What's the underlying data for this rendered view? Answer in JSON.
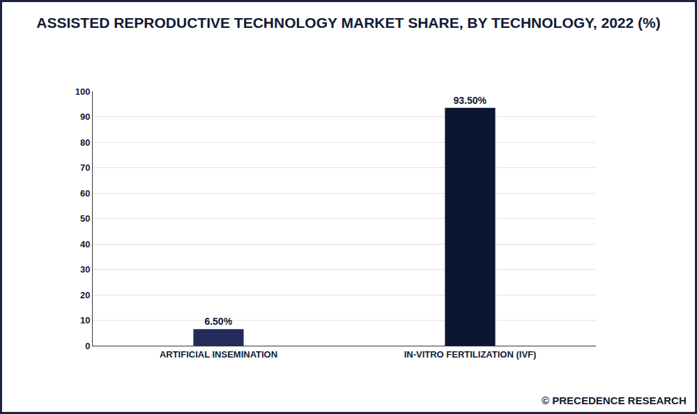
{
  "chart_data": {
    "type": "bar",
    "title": "ASSISTED REPRODUCTIVE TECHNOLOGY MARKET SHARE, BY TECHNOLOGY, 2022 (%)",
    "categories": [
      "ARTIFICIAL INSEMINATION",
      "IN-VITRO FERTILIZATION (IVF)"
    ],
    "values": [
      6.5,
      93.5
    ],
    "value_labels": [
      "6.50%",
      "93.50%"
    ],
    "data_labels": true,
    "colors": [
      "#222d5e",
      "#0c1632"
    ],
    "ylim": [
      0,
      100
    ],
    "yticks": [
      0,
      10,
      20,
      30,
      40,
      50,
      60,
      70,
      80,
      90,
      100
    ],
    "grid": true,
    "annotations": [
      "© PRECEDENCE RESEARCH"
    ]
  }
}
